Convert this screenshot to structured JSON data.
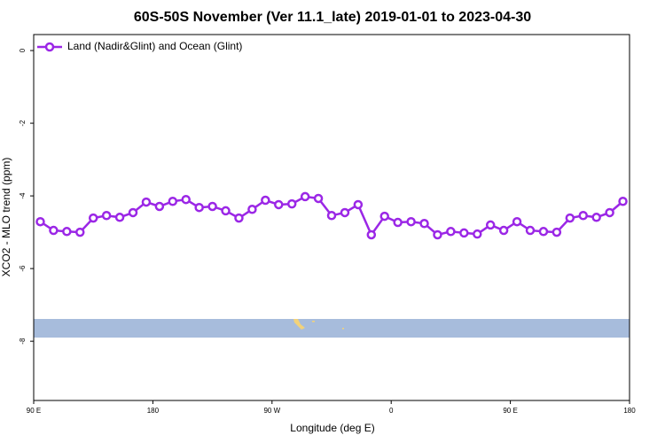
{
  "chart_data": {
    "type": "line",
    "title": "60S-50S November (Ver 11.1_late)   2019-01-01 to 2023-04-30",
    "x_label": "Longitude (deg E)",
    "y_label": "XCO2 - MLO trend (ppm)",
    "legend_position": "upper left",
    "x": [
      95,
      105,
      115,
      125,
      135,
      145,
      155,
      165,
      175,
      185,
      195,
      205,
      215,
      225,
      235,
      245,
      255,
      265,
      275,
      285,
      295,
      305,
      315,
      325,
      335,
      345,
      355,
      365,
      375,
      385,
      395,
      405,
      415,
      425,
      435,
      445,
      455,
      465,
      475,
      485,
      495,
      505,
      515,
      525,
      535
    ],
    "series": [
      {
        "name": "Land (Nadir&Glint) and Ocean (Glint)",
        "color": "#9b27e6",
        "values": [
          -4.71,
          -4.95,
          -4.98,
          -5.0,
          -4.61,
          -4.54,
          -4.59,
          -4.46,
          -4.17,
          -4.29,
          -4.15,
          -4.1,
          -4.32,
          -4.29,
          -4.41,
          -4.61,
          -4.37,
          -4.12,
          -4.24,
          -4.22,
          -4.02,
          -4.07,
          -4.54,
          -4.46,
          -4.24,
          -5.07,
          -4.56,
          -4.73,
          -4.71,
          -4.76,
          -5.07,
          -4.98,
          -5.02,
          -5.05,
          -4.8,
          -4.95,
          -4.71,
          -4.95,
          -4.98,
          -5.0,
          -4.61,
          -4.54,
          -4.59,
          -4.46,
          -4.15
        ]
      }
    ],
    "xlim": [
      90,
      540
    ],
    "xticks": [
      {
        "value": 90,
        "label": "90 E"
      },
      180,
      {
        "value": 270,
        "label": "90 W"
      },
      {
        "value": 360,
        "label": "0"
      },
      {
        "value": 450,
        "label": "90 E"
      },
      {
        "value": 540,
        "label": "180"
      }
    ],
    "ylim": [
      -9.63,
      0.44
    ],
    "yticks": [
      0,
      -2,
      -4,
      -6,
      -8
    ]
  }
}
